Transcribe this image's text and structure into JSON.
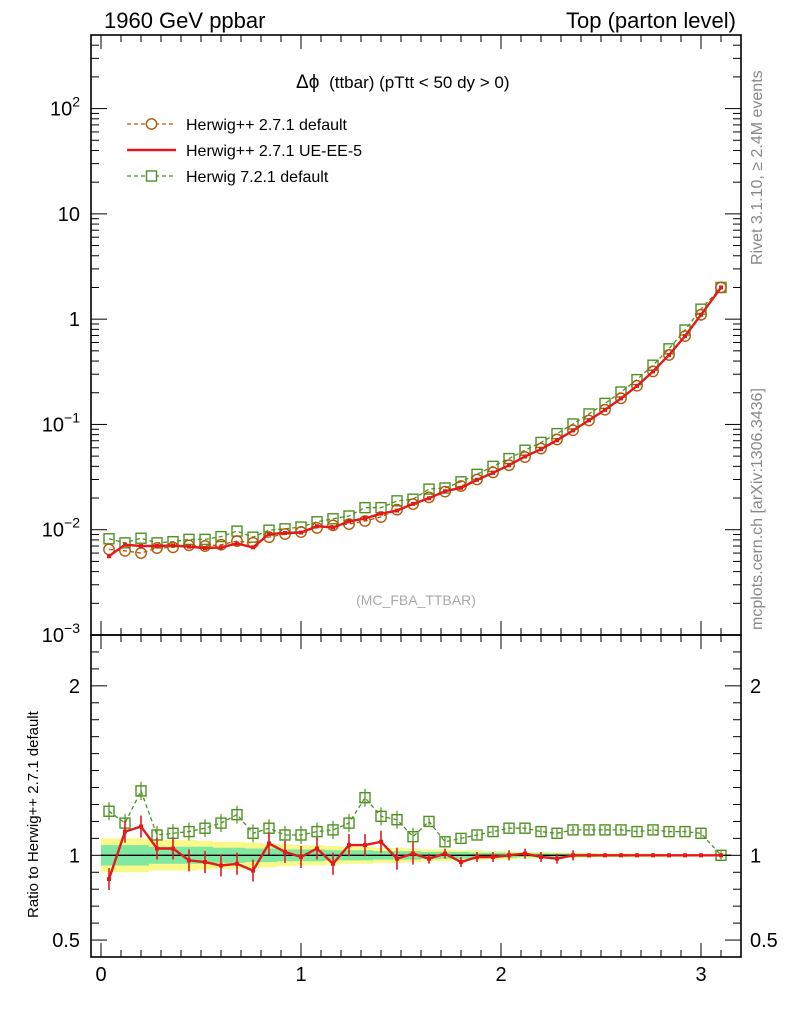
{
  "header": {
    "left": "1960 GeV ppbar",
    "right": "Top (parton level)"
  },
  "side_labels": {
    "rivet": "Rivet 3.1.10, ≥ 2.4M events",
    "mcplots": "mcplots.cern.ch [arXiv:1306.3436]"
  },
  "chart_data": {
    "type": "line",
    "title_symbol": "Δϕ",
    "title": "(ttbar) (pTtt < 50 dy > 0)",
    "watermark": "(MC_FBA_TTBAR)",
    "xlabel": "",
    "ylabel": "",
    "ylog": true,
    "xlim": [
      -0.05,
      3.2
    ],
    "ylim": [
      0.001,
      500
    ],
    "xticks": [
      0,
      1,
      2,
      3
    ],
    "yticks": [
      {
        "value": 0.001,
        "base": "10",
        "exp": "−3"
      },
      {
        "value": 0.01,
        "base": "10",
        "exp": "−2"
      },
      {
        "value": 0.1,
        "base": "10",
        "exp": "−1"
      },
      {
        "value": 1,
        "base": "1",
        "exp": ""
      },
      {
        "value": 10,
        "base": "10",
        "exp": ""
      },
      {
        "value": 100,
        "base": "10",
        "exp": "2"
      }
    ],
    "legend_position": "top-left",
    "colors": {
      "default_2_7_1": "#b35806",
      "ue_ee_5": "#e31a1c",
      "herwig_7_2_1": "#4d9221",
      "band_inner": "#7fe8a0",
      "band_outer": "#f9f98a"
    },
    "x": [
      0.04,
      0.12,
      0.2,
      0.28,
      0.36,
      0.44,
      0.52,
      0.6,
      0.68,
      0.76,
      0.84,
      0.92,
      1.0,
      1.08,
      1.16,
      1.24,
      1.32,
      1.4,
      1.48,
      1.56,
      1.64,
      1.72,
      1.8,
      1.88,
      1.96,
      2.04,
      2.12,
      2.2,
      2.28,
      2.36,
      2.44,
      2.52,
      2.6,
      2.68,
      2.76,
      2.84,
      2.92,
      3.0,
      3.1
    ],
    "series": [
      {
        "name": "Herwig++ 2.7.1 default",
        "style": "dashed-circle",
        "values": [
          0.0065,
          0.0063,
          0.006,
          0.0067,
          0.0068,
          0.0071,
          0.007,
          0.0072,
          0.0078,
          0.0075,
          0.0085,
          0.0091,
          0.0095,
          0.0104,
          0.011,
          0.0113,
          0.0121,
          0.0132,
          0.0155,
          0.0175,
          0.0203,
          0.023,
          0.026,
          0.03,
          0.035,
          0.041,
          0.049,
          0.059,
          0.072,
          0.088,
          0.109,
          0.138,
          0.177,
          0.233,
          0.319,
          0.457,
          0.69,
          1.1,
          2.0
        ]
      },
      {
        "name": "Herwig++ 2.7.1 UE-EE-5",
        "style": "solid",
        "values": [
          0.0056,
          0.0072,
          0.007,
          0.007,
          0.0071,
          0.0069,
          0.0067,
          0.0068,
          0.0074,
          0.0068,
          0.0091,
          0.0093,
          0.0094,
          0.0108,
          0.0105,
          0.012,
          0.0128,
          0.0142,
          0.0152,
          0.0176,
          0.0199,
          0.0232,
          0.025,
          0.0298,
          0.0347,
          0.041,
          0.0496,
          0.0582,
          0.0708,
          0.0876,
          0.1094,
          0.1375,
          0.1768,
          0.2322,
          0.3185,
          0.4566,
          0.6906,
          1.1009,
          2.0
        ]
      },
      {
        "name": "Herwig 7.2.1 default",
        "style": "dashed-square",
        "values": [
          0.0082,
          0.0075,
          0.0083,
          0.0075,
          0.0077,
          0.0081,
          0.0081,
          0.0086,
          0.0097,
          0.0085,
          0.0099,
          0.0102,
          0.0106,
          0.0119,
          0.0127,
          0.0135,
          0.0162,
          0.0162,
          0.0188,
          0.0195,
          0.0243,
          0.0249,
          0.0285,
          0.0336,
          0.04,
          0.0474,
          0.0569,
          0.0675,
          0.0818,
          0.101,
          0.1258,
          0.1585,
          0.2032,
          0.2665,
          0.3653,
          0.5224,
          0.7886,
          1.2439,
          2.0
        ]
      }
    ],
    "scale_factor_last_bin_note": "",
    "ratio_panel": {
      "ylabel": "Ratio to Herwig++ 2.7.1 default",
      "ylim": [
        0.4,
        2.3
      ],
      "yticks": [
        0.5,
        1,
        2
      ],
      "ytick_labels": [
        "0.5",
        "1",
        "2"
      ],
      "UE_EE_5": [
        0.86,
        1.14,
        1.17,
        1.04,
        1.04,
        0.97,
        0.96,
        0.94,
        0.95,
        0.91,
        1.07,
        1.02,
        0.99,
        1.04,
        0.95,
        1.06,
        1.06,
        1.08,
        0.98,
        1.01,
        0.98,
        1.01,
        0.96,
        0.99,
        0.99,
        1.0,
        1.01,
        0.99,
        0.98,
        1.0,
        1.0,
        1.0,
        1.0,
        1.0,
        1.0,
        1.0,
        1.0,
        1.0,
        1.0
      ],
      "Herwig_7_2_1": [
        1.26,
        1.19,
        1.38,
        1.12,
        1.13,
        1.14,
        1.16,
        1.19,
        1.24,
        1.13,
        1.16,
        1.12,
        1.12,
        1.14,
        1.15,
        1.19,
        1.34,
        1.23,
        1.21,
        1.11,
        1.2,
        1.08,
        1.1,
        1.12,
        1.14,
        1.16,
        1.16,
        1.14,
        1.13,
        1.15,
        1.15,
        1.15,
        1.15,
        1.14,
        1.15,
        1.14,
        1.14,
        1.13,
        1.0
      ],
      "band_inner_halfwidth": [
        0.06,
        0.06,
        0.06,
        0.05,
        0.05,
        0.05,
        0.05,
        0.045,
        0.045,
        0.04,
        0.04,
        0.035,
        0.035,
        0.035,
        0.03,
        0.03,
        0.03,
        0.025,
        0.025,
        0.025,
        0.02,
        0.02,
        0.02,
        0.015,
        0.015,
        0.015,
        0.012,
        0.012,
        0.01,
        0.01,
        0.01,
        0.008,
        0.008,
        0.006,
        0.006,
        0.005,
        0.005,
        0.004,
        0.004
      ],
      "band_outer_halfwidth": [
        0.1,
        0.1,
        0.1,
        0.09,
        0.09,
        0.09,
        0.085,
        0.08,
        0.08,
        0.075,
        0.07,
        0.065,
        0.06,
        0.06,
        0.055,
        0.05,
        0.05,
        0.045,
        0.045,
        0.04,
        0.035,
        0.035,
        0.03,
        0.03,
        0.025,
        0.025,
        0.02,
        0.02,
        0.018,
        0.016,
        0.014,
        0.012,
        0.012,
        0.01,
        0.01,
        0.008,
        0.008,
        0.006,
        0.006
      ]
    }
  }
}
